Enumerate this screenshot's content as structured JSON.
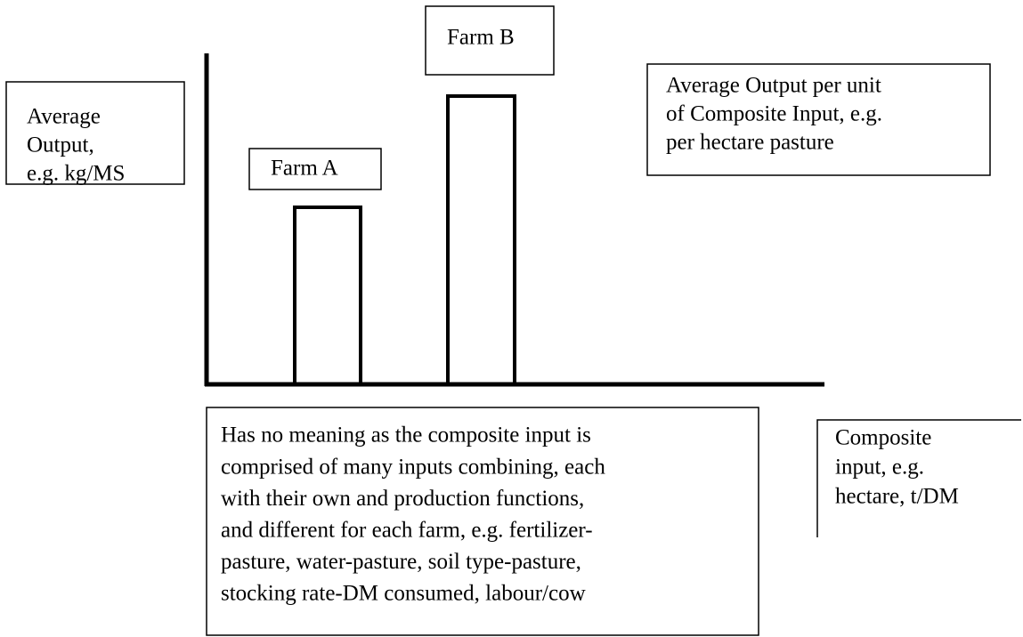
{
  "y_axis_label": [
    "Average",
    "Output,",
    "e.g. kg/MS"
  ],
  "bars": [
    {
      "label": "Farm A"
    },
    {
      "label": "Farm B"
    }
  ],
  "note_top": [
    "Average Output per unit",
    "of Composite Input, e.g.",
    "per hectare pasture"
  ],
  "note_bottom": [
    "Has no meaning as the composite input is",
    "comprised of many inputs combining, each",
    "with their own and production functions,",
    "and different for each farm, e.g. fertilizer-",
    "pasture, water-pasture, soil type-pasture,",
    "stocking rate-DM consumed, labour/cow"
  ],
  "x_axis_label": [
    "Composite",
    "input, e.g.",
    "hectare, t/DM"
  ]
}
